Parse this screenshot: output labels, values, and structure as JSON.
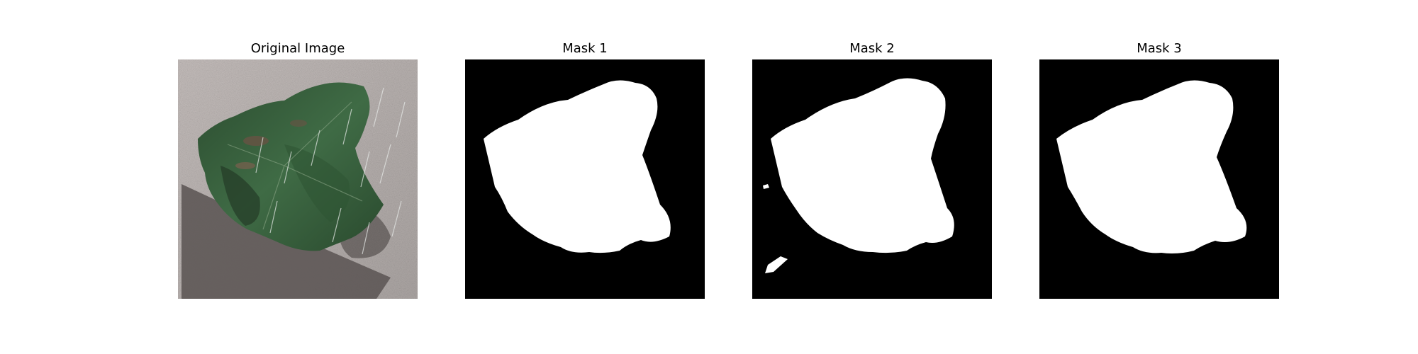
{
  "panels": [
    {
      "title": "Original Image",
      "kind": "photo"
    },
    {
      "title": "Mask 1",
      "kind": "mask"
    },
    {
      "title": "Mask 2",
      "kind": "mask"
    },
    {
      "title": "Mask 3",
      "kind": "mask"
    }
  ],
  "colors": {
    "background": "#ffffff",
    "mask_bg": "#000000",
    "mask_fg": "#ffffff",
    "pavement": "#b7b1ae",
    "leaf_dark": "#1f3d26",
    "leaf_mid": "#3d6a42",
    "shadow": "#5e5856"
  }
}
